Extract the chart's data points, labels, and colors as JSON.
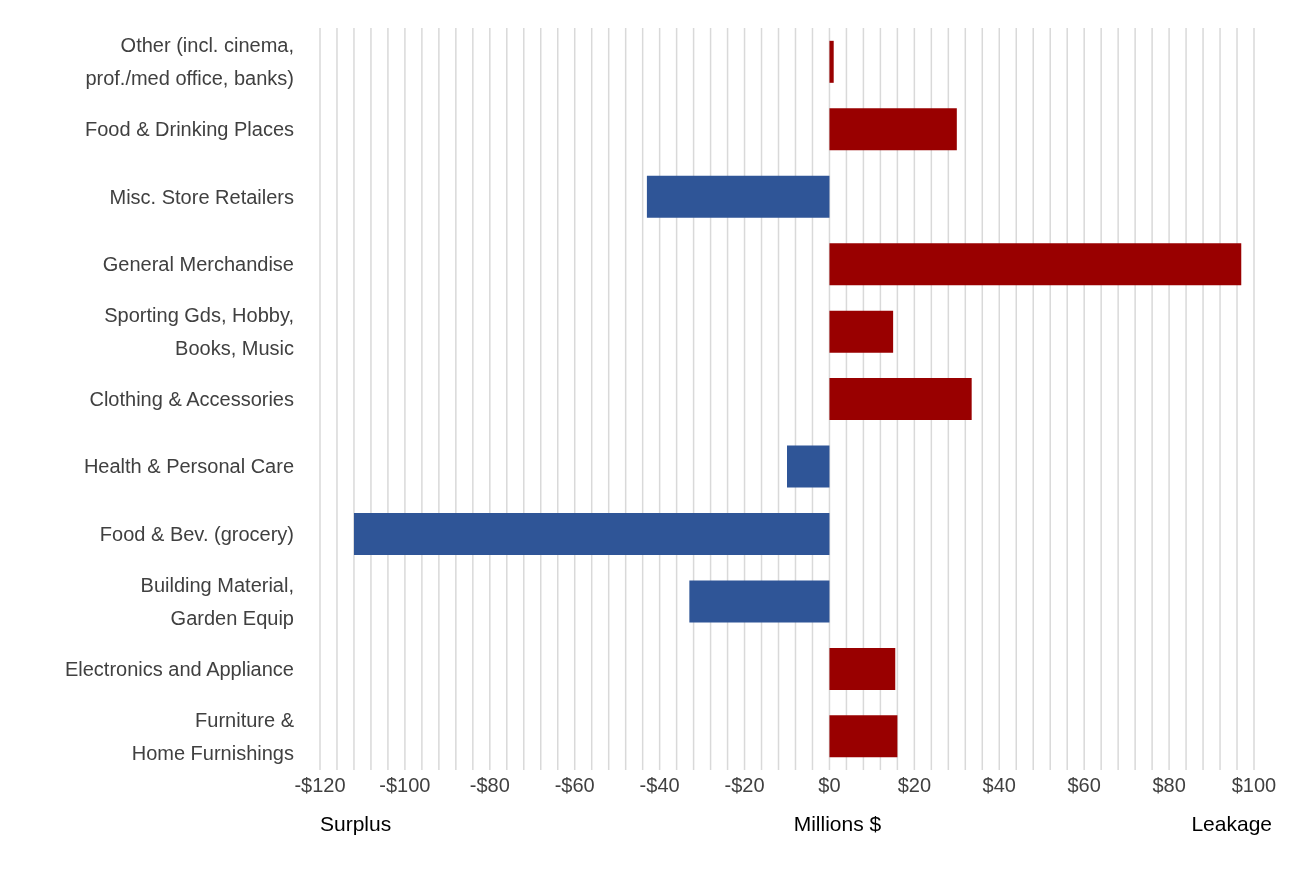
{
  "chart_data": {
    "type": "bar",
    "orientation": "horizontal",
    "xlabel": "Millions $",
    "categories": [
      "Other (incl. cinema,\nprof./med office, banks)",
      "Food & Drinking Places",
      "Misc. Store Retailers",
      "General Merchandise",
      "Sporting Gds, Hobby,\nBooks, Music",
      "Clothing & Accessories",
      "Health & Personal Care",
      "Food & Bev. (grocery)",
      "Building Material,\nGarden Equip",
      "Electronics and Appliance",
      "Furniture &\nHome Furnishings"
    ],
    "values": [
      1,
      30,
      -43,
      97,
      15,
      33.5,
      -10,
      -112,
      -33,
      15.5,
      16
    ],
    "colors": [
      "#990000",
      "#990000",
      "#2f5597",
      "#990000",
      "#990000",
      "#990000",
      "#2f5597",
      "#2f5597",
      "#2f5597",
      "#990000",
      "#990000"
    ],
    "xlim": [
      -120,
      100
    ],
    "xticks": [
      {
        "value": -120,
        "label": "-$120"
      },
      {
        "value": -116,
        "label": null
      },
      {
        "value": -112,
        "label": null
      },
      {
        "value": -108,
        "label": null
      },
      {
        "value": -104,
        "label": null
      },
      {
        "value": -100,
        "label": "-$100"
      },
      {
        "value": -96,
        "label": null
      },
      {
        "value": -92,
        "label": null
      },
      {
        "value": -88,
        "label": null
      },
      {
        "value": -84,
        "label": null
      },
      {
        "value": -80,
        "label": "-$80"
      },
      {
        "value": -76,
        "label": null
      },
      {
        "value": -72,
        "label": null
      },
      {
        "value": -68,
        "label": null
      },
      {
        "value": -64,
        "label": null
      },
      {
        "value": -60,
        "label": "-$60"
      },
      {
        "value": -56,
        "label": null
      },
      {
        "value": -52,
        "label": null
      },
      {
        "value": -48,
        "label": null
      },
      {
        "value": -44,
        "label": null
      },
      {
        "value": -40,
        "label": "-$40"
      },
      {
        "value": -36,
        "label": null
      },
      {
        "value": -32,
        "label": null
      },
      {
        "value": -28,
        "label": null
      },
      {
        "value": -24,
        "label": null
      },
      {
        "value": -20,
        "label": "-$20"
      },
      {
        "value": -16,
        "label": null
      },
      {
        "value": -12,
        "label": null
      },
      {
        "value": -8,
        "label": null
      },
      {
        "value": -4,
        "label": null
      },
      {
        "value": 0,
        "label": "$0"
      },
      {
        "value": 4,
        "label": null
      },
      {
        "value": 8,
        "label": null
      },
      {
        "value": 12,
        "label": null
      },
      {
        "value": 16,
        "label": null
      },
      {
        "value": 20,
        "label": "$20"
      },
      {
        "value": 24,
        "label": null
      },
      {
        "value": 28,
        "label": null
      },
      {
        "value": 32,
        "label": null
      },
      {
        "value": 36,
        "label": null
      },
      {
        "value": 40,
        "label": "$40"
      },
      {
        "value": 44,
        "label": null
      },
      {
        "value": 48,
        "label": null
      },
      {
        "value": 52,
        "label": null
      },
      {
        "value": 56,
        "label": null
      },
      {
        "value": 60,
        "label": "$60"
      },
      {
        "value": 64,
        "label": null
      },
      {
        "value": 68,
        "label": null
      },
      {
        "value": 72,
        "label": null
      },
      {
        "value": 76,
        "label": null
      },
      {
        "value": 80,
        "label": "$80"
      },
      {
        "value": 84,
        "label": null
      },
      {
        "value": 88,
        "label": null
      },
      {
        "value": 92,
        "label": null
      },
      {
        "value": 96,
        "label": null
      },
      {
        "value": 100,
        "label": "$100"
      }
    ],
    "grid": "x",
    "annotations": [
      "Surplus",
      "Leakage"
    ]
  }
}
